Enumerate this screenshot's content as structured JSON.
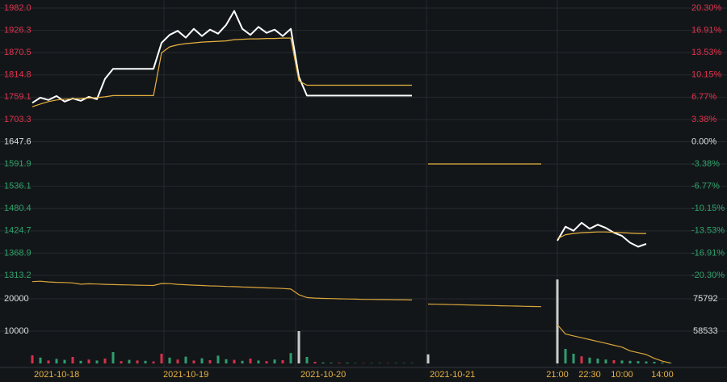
{
  "chart_data": [
    {
      "type": "line",
      "ylim": [
        1313.2,
        1982.0
      ],
      "yticks": [
        {
          "value": 1982.0,
          "label": "1982.0"
        },
        1926.3,
        1870.5,
        1814.8,
        1759.1,
        1703.3,
        1647.6,
        1591.9,
        1536.1,
        1480.4,
        1424.7,
        1368.9,
        1313.2
      ],
      "y2lim": [
        -20.3,
        20.3
      ],
      "y2ticks": [
        {
          "value": 20.3,
          "label": "20.30%"
        },
        {
          "value": 16.91,
          "label": "16.91%"
        },
        {
          "value": 13.53,
          "label": "13.53%"
        },
        {
          "value": 10.15,
          "label": "10.15%"
        },
        {
          "value": 6.77,
          "label": "6.77%"
        },
        {
          "value": 3.38,
          "label": "3.38%"
        },
        {
          "value": 0,
          "label": "0.00%"
        },
        {
          "value": -3.38,
          "label": "-3.38%"
        },
        {
          "value": -6.77,
          "label": "-6.77%"
        },
        {
          "value": -10.15,
          "label": "-10.15%"
        },
        {
          "value": -13.53,
          "label": "-13.53%"
        },
        {
          "value": -16.91,
          "label": "-16.91%"
        },
        {
          "value": -20.3,
          "label": "-20.30%"
        }
      ],
      "up_color": "#e0334d",
      "down_color": "#2fa36b",
      "flat_color": "#dddddd",
      "grid": true,
      "series": [
        {
          "color": "#ffffff",
          "values": [
            1745,
            1758,
            1752,
            1762,
            1748,
            1756,
            1750,
            1760,
            1754,
            1805,
            1830,
            1830,
            1830,
            1830,
            1830,
            1830,
            1895,
            1915,
            1925,
            1908,
            1930,
            1912,
            1928,
            1918,
            1940,
            1975,
            1930,
            1915,
            1935,
            1920,
            1928,
            1912,
            1930,
            1810,
            1763,
            1763,
            1763,
            1763,
            1763,
            1763,
            1763,
            1763,
            1763,
            1763,
            1763,
            1763,
            1763,
            1763,
            null,
            null,
            null,
            null,
            null,
            null,
            null,
            null,
            null,
            null,
            null,
            null,
            null,
            null,
            null,
            null,
            null,
            1400,
            1435,
            1425,
            1445,
            1430,
            1440,
            1432,
            1420,
            1412,
            1395,
            1385,
            1392,
            null,
            null,
            null,
            null,
            null
          ]
        },
        {
          "color": "#e8b341",
          "values": [
            1735,
            1742,
            1748,
            1752,
            1754,
            1755,
            1756,
            1757,
            1758,
            1760,
            1763,
            1763,
            1763,
            1763,
            1763,
            1763,
            1870,
            1885,
            1890,
            1893,
            1895,
            1897,
            1898,
            1899,
            1900,
            1903,
            1904,
            1905,
            1905,
            1906,
            1906,
            1907,
            1907,
            1800,
            1789,
            1789,
            1789,
            1789,
            1789,
            1789,
            1789,
            1789,
            1789,
            1789,
            1789,
            1789,
            1789,
            1789,
            null,
            1592,
            1592,
            1592,
            1592,
            1592,
            1592,
            1592,
            1592,
            1592,
            1592,
            1592,
            1592,
            1592,
            1592,
            1592,
            null,
            1405,
            1415,
            1418,
            1420,
            1421,
            1422,
            1422,
            1421,
            1420,
            1419,
            1418,
            1418,
            null,
            null,
            null,
            null,
            null
          ]
        }
      ]
    },
    {
      "type": "bar",
      "categories": [
        "2021-10-18",
        null,
        null,
        null,
        null,
        null,
        null,
        null,
        null,
        null,
        null,
        null,
        null,
        null,
        null,
        null,
        "2021-10-19",
        null,
        null,
        null,
        null,
        null,
        null,
        null,
        null,
        null,
        null,
        null,
        null,
        null,
        null,
        null,
        null,
        "2021-10-20",
        null,
        null,
        null,
        null,
        null,
        null,
        null,
        null,
        null,
        null,
        null,
        null,
        null,
        null,
        null,
        "2021-10-21",
        null,
        null,
        null,
        null,
        null,
        null,
        null,
        null,
        null,
        null,
        null,
        null,
        null,
        null,
        null,
        "21:00",
        null,
        null,
        null,
        "22:30",
        null,
        null,
        null,
        "10:00",
        null,
        null,
        null,
        null,
        "14:00",
        null,
        null,
        null
      ],
      "values": [
        2500,
        1800,
        900,
        1400,
        1100,
        2000,
        800,
        1200,
        900,
        1500,
        3500,
        700,
        1100,
        900,
        800,
        600,
        3000,
        1800,
        1200,
        2100,
        900,
        1600,
        1000,
        2400,
        1300,
        1100,
        800,
        1500,
        900,
        700,
        1200,
        1000,
        3200,
        10000,
        2000,
        500,
        300,
        200,
        200,
        200,
        100,
        100,
        100,
        100,
        100,
        100,
        100,
        100,
        0,
        2800,
        0,
        0,
        0,
        0,
        0,
        0,
        0,
        0,
        0,
        0,
        0,
        0,
        0,
        0,
        0,
        26000,
        4500,
        3000,
        2200,
        1800,
        1500,
        1200,
        1000,
        900,
        800,
        700,
        600,
        500,
        300,
        200,
        0,
        0
      ],
      "colors": [
        "#d9304a",
        "#2f9e6e",
        "#d9304a",
        "#2f9e6e",
        "#2f9e6e",
        "#d9304a",
        "#2f9e6e",
        "#d9304a",
        "#2f9e6e",
        "#d9304a",
        "#2f9e6e",
        "#d9304a",
        "#2f9e6e",
        "#d9304a",
        "#2f9e6e",
        "#d9304a",
        "#d9304a",
        "#2f9e6e",
        "#d9304a",
        "#2f9e6e",
        "#d9304a",
        "#2f9e6e",
        "#d9304a",
        "#2f9e6e",
        "#2f9e6e",
        "#d9304a",
        "#2f9e6e",
        "#d9304a",
        "#2f9e6e",
        "#d9304a",
        "#2f9e6e",
        "#d9304a",
        "#2f9e6e",
        "#cccccc",
        "#2f9e6e",
        "#d9304a",
        "#2f9e6e",
        "#2f9e6e",
        "#d9304a",
        "#2f9e6e",
        "#2f9e6e",
        "#d9304a",
        "#2f9e6e",
        "#2f9e6e",
        "#d9304a",
        "#2f9e6e",
        "#2f9e6e",
        "#2f9e6e",
        "#2f9e6e",
        "#cccccc",
        "#2f9e6e",
        "#2f9e6e",
        "#2f9e6e",
        "#2f9e6e",
        "#2f9e6e",
        "#2f9e6e",
        "#2f9e6e",
        "#2f9e6e",
        "#2f9e6e",
        "#2f9e6e",
        "#2f9e6e",
        "#2f9e6e",
        "#2f9e6e",
        "#2f9e6e",
        "#2f9e6e",
        "#cccccc",
        "#2f9e6e",
        "#2f9e6e",
        "#d9304a",
        "#2f9e6e",
        "#2f9e6e",
        "#2f9e6e",
        "#d9304a",
        "#2f9e6e",
        "#2f9e6e",
        "#2f9e6e",
        "#2f9e6e",
        "#2f9e6e",
        "#2f9e6e",
        "#2f9e6e",
        "#2f9e6e",
        "#2f9e6e"
      ],
      "ylim": [
        0,
        27000
      ],
      "yticks": [
        20000,
        10000
      ],
      "y2lim": [
        41272,
        87874
      ],
      "y2ticks": [
        75792,
        58533
      ],
      "grid": true,
      "series": [
        {
          "color": "#d9a53a",
          "axis": "y2",
          "values": [
            85000,
            85200,
            84800,
            84600,
            84500,
            84300,
            83600,
            83800,
            83700,
            83500,
            83400,
            83300,
            83200,
            83100,
            83000,
            82900,
            84000,
            83900,
            83500,
            83300,
            83100,
            82900,
            82700,
            82600,
            82400,
            82300,
            82100,
            82000,
            81800,
            81600,
            81500,
            81300,
            81000,
            78000,
            76500,
            76200,
            76000,
            75900,
            75800,
            75700,
            75600,
            75500,
            75500,
            75400,
            75400,
            75300,
            75300,
            75200,
            null,
            73000,
            72900,
            72800,
            72700,
            72600,
            72500,
            72400,
            72300,
            72200,
            72100,
            72000,
            71900,
            71800,
            71700,
            71600,
            null,
            62000,
            57000,
            56000,
            55000,
            54000,
            53000,
            52000,
            51000,
            50000,
            48000,
            47000,
            46000,
            44000,
            42500,
            41500,
            null,
            null
          ]
        }
      ]
    }
  ]
}
